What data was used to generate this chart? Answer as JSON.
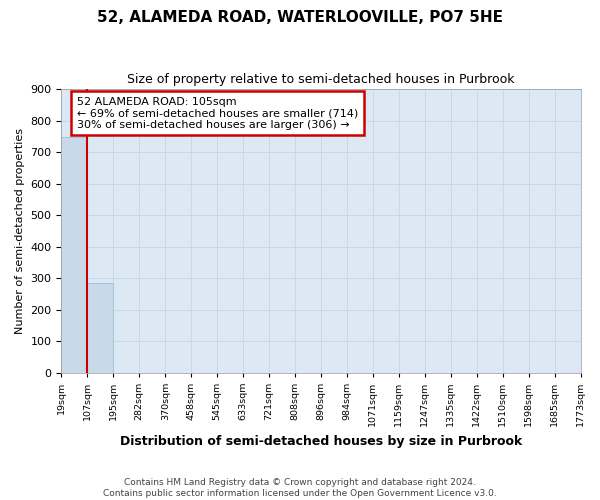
{
  "title": "52, ALAMEDA ROAD, WATERLOOVILLE, PO7 5HE",
  "subtitle": "Size of property relative to semi-detached houses in Purbrook",
  "xlabel": "Distribution of semi-detached houses by size in Purbrook",
  "ylabel": "Number of semi-detached properties",
  "footer_line1": "Contains HM Land Registry data © Crown copyright and database right 2024.",
  "footer_line2": "Contains public sector information licensed under the Open Government Licence v3.0.",
  "bin_labels": [
    "19sqm",
    "107sqm",
    "195sqm",
    "282sqm",
    "370sqm",
    "458sqm",
    "545sqm",
    "633sqm",
    "721sqm",
    "808sqm",
    "896sqm",
    "984sqm",
    "1071sqm",
    "1159sqm",
    "1247sqm",
    "1335sqm",
    "1422sqm",
    "1510sqm",
    "1598sqm",
    "1685sqm",
    "1773sqm"
  ],
  "bar_heights": [
    750,
    285,
    0,
    0,
    0,
    0,
    0,
    0,
    0,
    0,
    0,
    0,
    0,
    0,
    0,
    0,
    0,
    0,
    0,
    0
  ],
  "bar_color": "#c8daea",
  "bar_edge_color": "#aac4dc",
  "vline_color": "#cc0000",
  "vline_x": 1.0,
  "ylim": [
    0,
    900
  ],
  "yticks": [
    0,
    100,
    200,
    300,
    400,
    500,
    600,
    700,
    800,
    900
  ],
  "annotation_title": "52 ALAMEDA ROAD: 105sqm",
  "annotation_line1": "← 69% of semi-detached houses are smaller (714)",
  "annotation_line2": "30% of semi-detached houses are larger (306) →",
  "annotation_box_color": "#cc0000",
  "annotation_bg": "#ffffff",
  "grid_color": "#c8d8e8",
  "figure_bg": "#ffffff",
  "plot_bg_color": "#dce9f5"
}
